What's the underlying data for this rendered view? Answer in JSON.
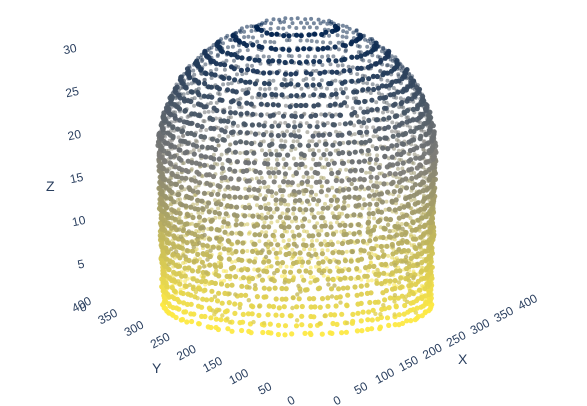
{
  "chart_data": {
    "type": "scatter3d",
    "colorscale": "cividis",
    "colorscale_low": "#fde945",
    "colorscale_mid": "#7d7c78",
    "colorscale_high": "#00224e",
    "color_by": "z",
    "marker_size": "small",
    "legend": "none",
    "axes": {
      "x": {
        "title": "X",
        "ticks": [
          "0",
          "50",
          "100",
          "150",
          "200",
          "250",
          "300",
          "350",
          "400"
        ],
        "range": [
          0,
          420
        ]
      },
      "y": {
        "title": "Y",
        "ticks": [
          "0",
          "50",
          "100",
          "150",
          "200",
          "250",
          "300",
          "350",
          "400"
        ],
        "range": [
          0,
          420
        ]
      },
      "z": {
        "title": "Z",
        "ticks": [
          "0",
          "5",
          "10",
          "15",
          "20",
          "25",
          "30"
        ],
        "range": [
          0,
          31
        ]
      }
    },
    "shape": {
      "description_values": {
        "center_x": 200,
        "center_y": 230,
        "max_radius": 170,
        "z_min": 0,
        "z_max": 31,
        "layer_count": 31
      }
    }
  }
}
